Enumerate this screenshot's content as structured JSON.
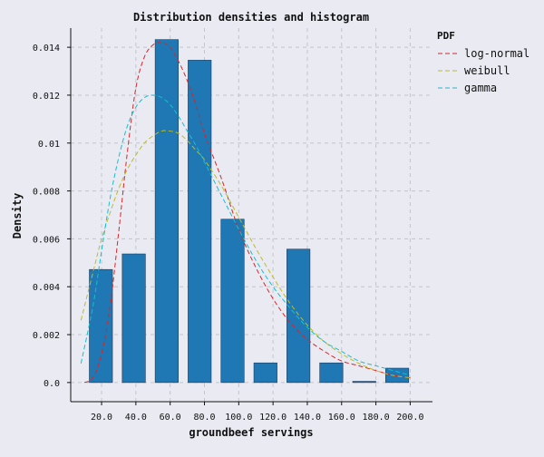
{
  "chart_data": {
    "type": "bar",
    "title": "Distribution densities and histogram",
    "xlabel": "groundbeef servings",
    "ylabel": "Density",
    "xlim": [
      2,
      213
    ],
    "ylim": [
      -0.0008,
      0.0148
    ],
    "x_ticks": [
      20,
      40,
      60,
      80,
      100,
      120,
      140,
      160,
      180,
      200
    ],
    "x_tick_labels": [
      "20.0",
      "40.0",
      "60.0",
      "80.0",
      "100.0",
      "120.0",
      "140.0",
      "160.0",
      "180.0",
      "200.0"
    ],
    "y_ticks": [
      0,
      0.002,
      0.004,
      0.006,
      0.008,
      0.01,
      0.012,
      0.014
    ],
    "y_tick_labels": [
      "0.0",
      "0.002",
      "0.004",
      "0.006",
      "0.008",
      "0.01",
      "0.012",
      "0.014"
    ],
    "grid": true,
    "histogram": {
      "bin_width": 19.2,
      "bar_width": 13.5,
      "centers": [
        19.6,
        38.8,
        58.0,
        77.2,
        96.4,
        115.6,
        134.8,
        154.0,
        173.2,
        192.4
      ],
      "values": [
        0.00472,
        0.00537,
        0.01432,
        0.01346,
        0.00682,
        0.00082,
        0.00557,
        0.00082,
        5e-05,
        0.0006
      ],
      "color": "#1f77b4"
    },
    "legend": {
      "title": "PDF",
      "position": "outside-right"
    },
    "series": [
      {
        "name": "log-normal",
        "color": "#d62728",
        "x": [
          10,
          15,
          20,
          25,
          30,
          35,
          40,
          45,
          50,
          55,
          60,
          65,
          70,
          75,
          80,
          90,
          100,
          110,
          120,
          130,
          140,
          150,
          160,
          170,
          180,
          190,
          200
        ],
        "y": [
          0.0,
          0.0002,
          0.0012,
          0.0032,
          0.0063,
          0.0096,
          0.0123,
          0.0136,
          0.0141,
          0.0142,
          0.014,
          0.0134,
          0.0126,
          0.0116,
          0.0104,
          0.0085,
          0.0064,
          0.0048,
          0.0035,
          0.0025,
          0.0018,
          0.0013,
          0.0009,
          0.0007,
          0.0005,
          0.0003,
          0.0002
        ]
      },
      {
        "name": "weibull",
        "color": "#bcbd22",
        "x": [
          8,
          15,
          20,
          25,
          30,
          35,
          40,
          45,
          50,
          55,
          60,
          65,
          70,
          75,
          80,
          90,
          100,
          110,
          120,
          130,
          140,
          150,
          160,
          170,
          180,
          190,
          200
        ],
        "y": [
          0.0026,
          0.0046,
          0.006,
          0.0071,
          0.0081,
          0.0089,
          0.0095,
          0.01,
          0.0103,
          0.0105,
          0.0105,
          0.0104,
          0.0101,
          0.0097,
          0.0093,
          0.0082,
          0.0069,
          0.0056,
          0.0044,
          0.0033,
          0.0024,
          0.0017,
          0.0012,
          0.0008,
          0.0005,
          0.0003,
          0.0002
        ]
      },
      {
        "name": "gamma",
        "color": "#17becf",
        "x": [
          8,
          15,
          20,
          25,
          30,
          35,
          40,
          45,
          50,
          55,
          60,
          65,
          70,
          75,
          80,
          90,
          100,
          110,
          120,
          130,
          140,
          150,
          160,
          170,
          180,
          190,
          200
        ],
        "y": [
          0.0008,
          0.0032,
          0.0055,
          0.0077,
          0.0094,
          0.0107,
          0.0115,
          0.0119,
          0.012,
          0.0119,
          0.0116,
          0.0111,
          0.0105,
          0.0099,
          0.0092,
          0.0078,
          0.0064,
          0.0051,
          0.004,
          0.0031,
          0.0023,
          0.0017,
          0.0013,
          0.0009,
          0.0007,
          0.0005,
          0.0003
        ]
      }
    ]
  }
}
